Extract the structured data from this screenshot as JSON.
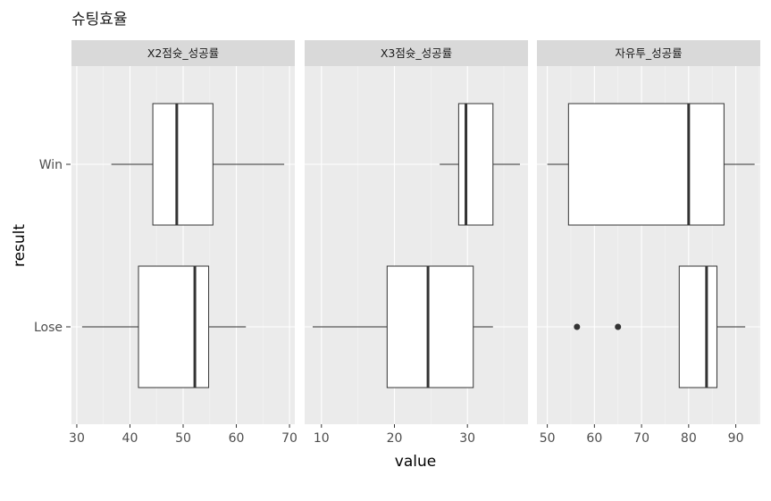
{
  "chart_data": {
    "type": "boxplot",
    "title": "슈팅효율",
    "xlabel": "value",
    "ylabel": "result",
    "categories": [
      "Win",
      "Lose"
    ],
    "grid": true,
    "facets": [
      {
        "name": "X2점슛_성공률",
        "xlim": [
          29,
          71
        ],
        "xticks": [
          30,
          40,
          50,
          60,
          70
        ],
        "boxes": [
          {
            "category": "Win",
            "whisker_low": 36.5,
            "q1": 44.3,
            "median": 48.8,
            "q3": 55.6,
            "whisker_high": 69.0,
            "outliers": []
          },
          {
            "category": "Lose",
            "whisker_low": 31.0,
            "q1": 41.6,
            "median": 52.2,
            "q3": 54.8,
            "whisker_high": 61.8,
            "outliers": []
          }
        ]
      },
      {
        "name": "X3점슛_성공률",
        "xlim": [
          7.7,
          38.3
        ],
        "xticks": [
          10,
          20,
          30
        ],
        "boxes": [
          {
            "category": "Win",
            "whisker_low": 26.2,
            "q1": 28.8,
            "median": 29.8,
            "q3": 33.5,
            "whisker_high": 37.2,
            "outliers": []
          },
          {
            "category": "Lose",
            "whisker_low": 8.8,
            "q1": 19.0,
            "median": 24.6,
            "q3": 30.8,
            "whisker_high": 33.5,
            "outliers": []
          }
        ]
      },
      {
        "name": "자유투_성공률",
        "xlim": [
          47.8,
          95.2
        ],
        "xticks": [
          50,
          60,
          70,
          80,
          90
        ],
        "boxes": [
          {
            "category": "Win",
            "whisker_low": 50.0,
            "q1": 54.5,
            "median": 80.0,
            "q3": 87.5,
            "whisker_high": 94.0,
            "outliers": []
          },
          {
            "category": "Lose",
            "whisker_low": 78.0,
            "q1": 78.0,
            "median": 83.8,
            "q3": 86.0,
            "whisker_high": 92.0,
            "outliers": [
              56.3,
              65.0
            ]
          }
        ]
      }
    ]
  }
}
